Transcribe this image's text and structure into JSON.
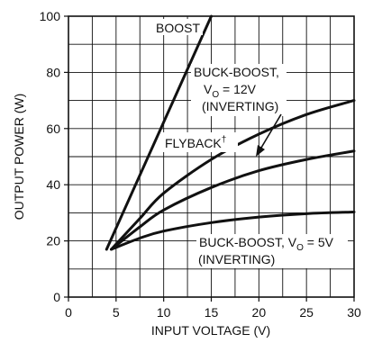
{
  "chart_data": {
    "type": "line",
    "title": "",
    "xlabel": "INPUT VOLTAGE (V)",
    "ylabel": "OUTPUT POWER (W)",
    "xlim": [
      0,
      30
    ],
    "ylim": [
      0,
      100
    ],
    "xticks": [
      0,
      5,
      10,
      15,
      20,
      25,
      30
    ],
    "yticks": [
      0,
      20,
      40,
      60,
      80,
      100
    ],
    "x_tick_labels": [
      "0",
      "5",
      "10",
      "15",
      "20",
      "25",
      "30"
    ],
    "y_tick_labels": [
      "0",
      "20",
      "40",
      "60",
      "80",
      "100"
    ],
    "grid": true,
    "series": [
      {
        "name": "BOOST",
        "x": [
          4,
          15
        ],
        "y": [
          17,
          100
        ]
      },
      {
        "name": "FLYBACK†",
        "x": [
          4.5,
          7.5,
          10,
          15,
          20,
          25,
          30
        ],
        "y": [
          17,
          28,
          37,
          49,
          58,
          65,
          70
        ]
      },
      {
        "name": "BUCK-BOOST, V_O = 12V (INVERTING)",
        "x": [
          4.5,
          7.5,
          10,
          15,
          20,
          25,
          30
        ],
        "y": [
          17,
          25,
          31,
          39,
          45,
          49,
          52
        ]
      },
      {
        "name": "BUCK-BOOST, V_O = 5V (INVERTING)",
        "x": [
          4.5,
          7.5,
          10,
          15,
          20,
          25,
          30
        ],
        "y": [
          17,
          21,
          23.5,
          26.5,
          28.5,
          29.7,
          30.3
        ]
      }
    ],
    "annotations": {
      "boost": "BOOST",
      "buck12_line1": "BUCK-BOOST,",
      "buck12_vo": "V",
      "buck12_sub": "O",
      "buck12_val": " = 12V",
      "buck12_line3": "(INVERTING)",
      "flyback": "FLYBACK",
      "flyback_mark": "†",
      "buck5_line1a": "BUCK-BOOST, V",
      "buck5_sub": "O",
      "buck5_val": " = 5V",
      "buck5_line2": "(INVERTING)"
    }
  }
}
